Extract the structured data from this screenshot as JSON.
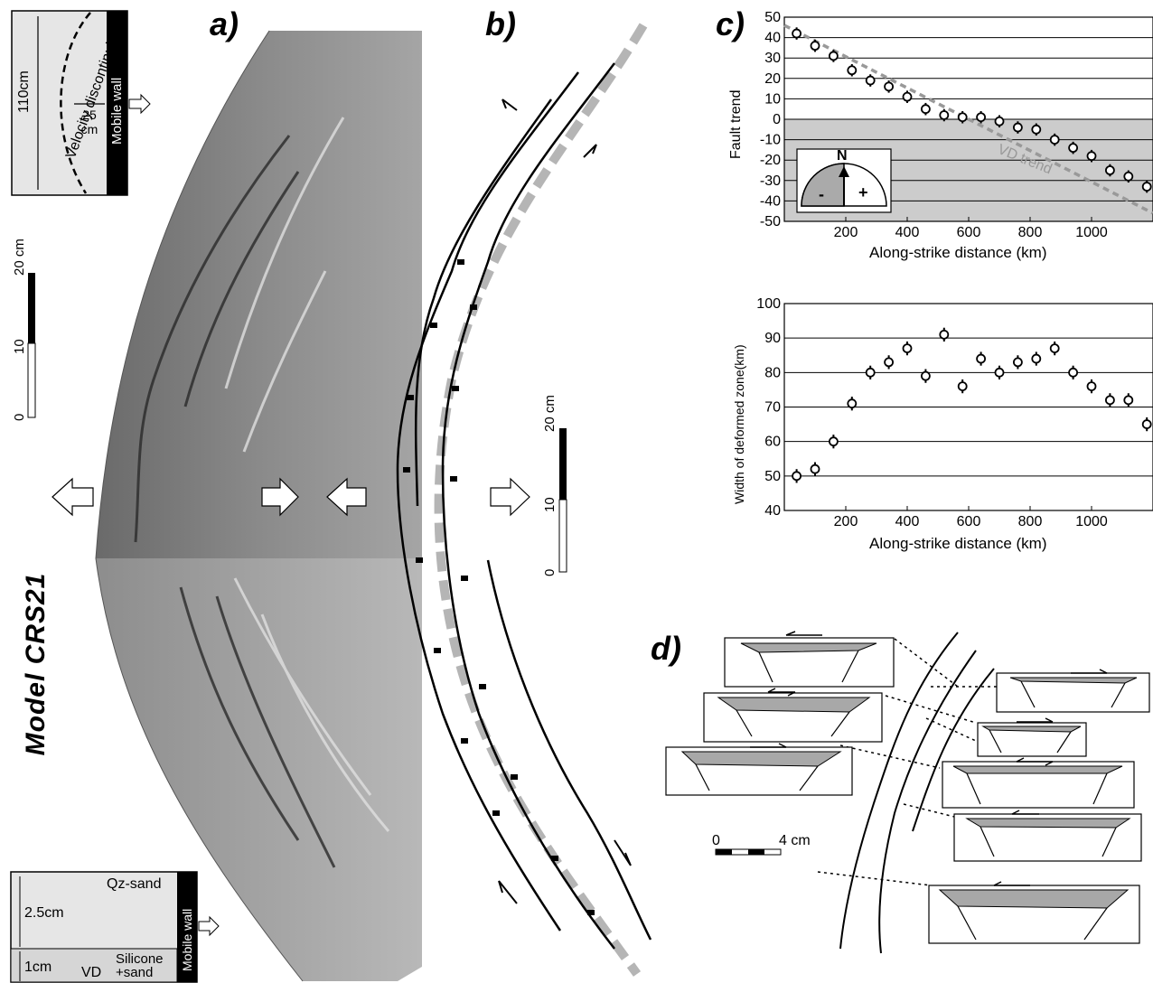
{
  "panels": {
    "a": {
      "label": "a)"
    },
    "b": {
      "label": "b)"
    },
    "c": {
      "label": "c)"
    },
    "d": {
      "label": "d)"
    }
  },
  "model_title": "Model CRS21",
  "setup_top": {
    "height": "110cm",
    "velocity_label": "Velocity discontinuity",
    "offset": "25 cm",
    "wall": "Mobile wall"
  },
  "setup_bottom": {
    "sand": "Qz-sand",
    "sand_thickness": "2.5cm",
    "silicone_thickness": "1cm",
    "vd": "VD",
    "silicone": "Silicone +sand",
    "wall": "Mobile wall"
  },
  "scale_bar": {
    "ticks": [
      "0",
      "10",
      "20 cm"
    ]
  },
  "scale_d": {
    "start": "0",
    "end": "4 cm"
  },
  "compass": {
    "north": "N",
    "neg": "-",
    "pos": "+"
  },
  "vd_trend_label": "VD trend",
  "colors": {
    "shade": "#cccccc",
    "dash": "#999999",
    "line": "#000000"
  },
  "chart_data": [
    {
      "type": "scatter",
      "title": "",
      "xlabel": "Along-strike distance (km)",
      "ylabel": "Fault trend",
      "xlim": [
        0,
        1200
      ],
      "ylim": [
        -50,
        50
      ],
      "xticks": [
        "200",
        "400",
        "600",
        "800",
        "1000"
      ],
      "yticks": [
        "50",
        "40",
        "30",
        "20",
        "10",
        "0",
        "-10",
        "-20",
        "-30",
        "-40",
        "-50"
      ],
      "grid": true,
      "shaded_y_range": [
        -50,
        0
      ],
      "trend_line": {
        "name": "VD trend",
        "x": [
          0,
          1200
        ],
        "y": [
          46,
          -46
        ]
      },
      "series": [
        {
          "x": [
            40,
            100,
            160,
            220,
            280,
            340,
            400,
            460,
            520,
            580,
            640,
            700,
            760,
            820,
            880,
            940,
            1000,
            1060,
            1120,
            1180
          ],
          "y": [
            42,
            36,
            31,
            24,
            19,
            16,
            11,
            5,
            2,
            1,
            1,
            -1,
            -4,
            -5,
            -10,
            -14,
            -18,
            -25,
            -28,
            -33
          ],
          "error": 3
        }
      ]
    },
    {
      "type": "scatter",
      "title": "",
      "xlabel": "Along-strike distance (km)",
      "ylabel": "Width of deformed zone(km)",
      "xlim": [
        0,
        1200
      ],
      "ylim": [
        40,
        100
      ],
      "xticks": [
        "200",
        "400",
        "600",
        "800",
        "1000"
      ],
      "yticks": [
        "100",
        "90",
        "80",
        "70",
        "60",
        "50",
        "40"
      ],
      "grid": true,
      "series": [
        {
          "x": [
            40,
            100,
            160,
            220,
            280,
            340,
            400,
            460,
            520,
            580,
            640,
            700,
            760,
            820,
            880,
            940,
            1000,
            1060,
            1120,
            1180
          ],
          "y": [
            50,
            52,
            60,
            71,
            80,
            83,
            87,
            79,
            91,
            76,
            84,
            80,
            83,
            84,
            87,
            80,
            76,
            72,
            72,
            65
          ],
          "error": 2
        }
      ]
    }
  ]
}
